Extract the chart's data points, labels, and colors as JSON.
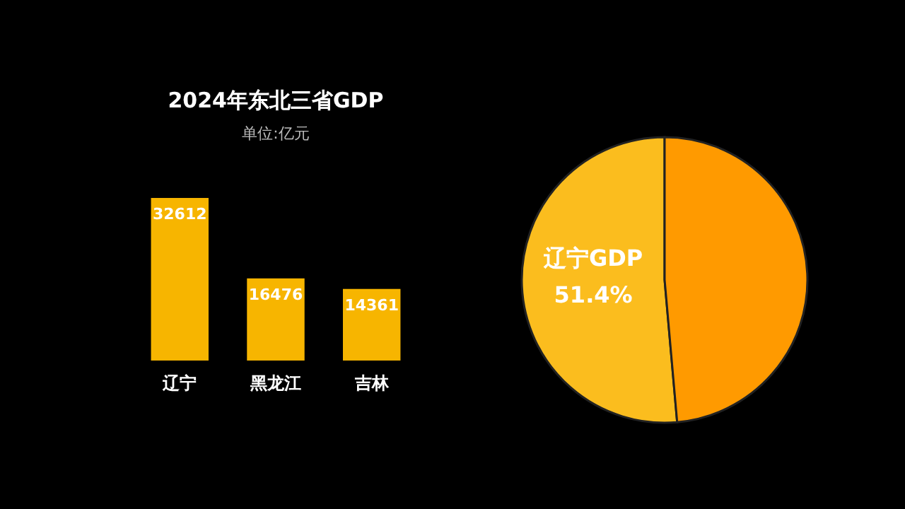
{
  "chart_data": [
    {
      "type": "bar",
      "title": "2024年东北三省GDP",
      "subtitle": "单位:亿元",
      "categories": [
        "辽宁",
        "黑龙江",
        "吉林"
      ],
      "values": [
        32612,
        16476,
        14361
      ],
      "color": "#f7b500",
      "data_labels": true
    },
    {
      "type": "pie",
      "categories": [
        "辽宁GDP",
        null
      ],
      "values": [
        51.4,
        48.6
      ],
      "colors": [
        "#fbbd1e",
        "#ff9a00"
      ],
      "value_labels": [
        "51.4%",
        null
      ]
    }
  ]
}
